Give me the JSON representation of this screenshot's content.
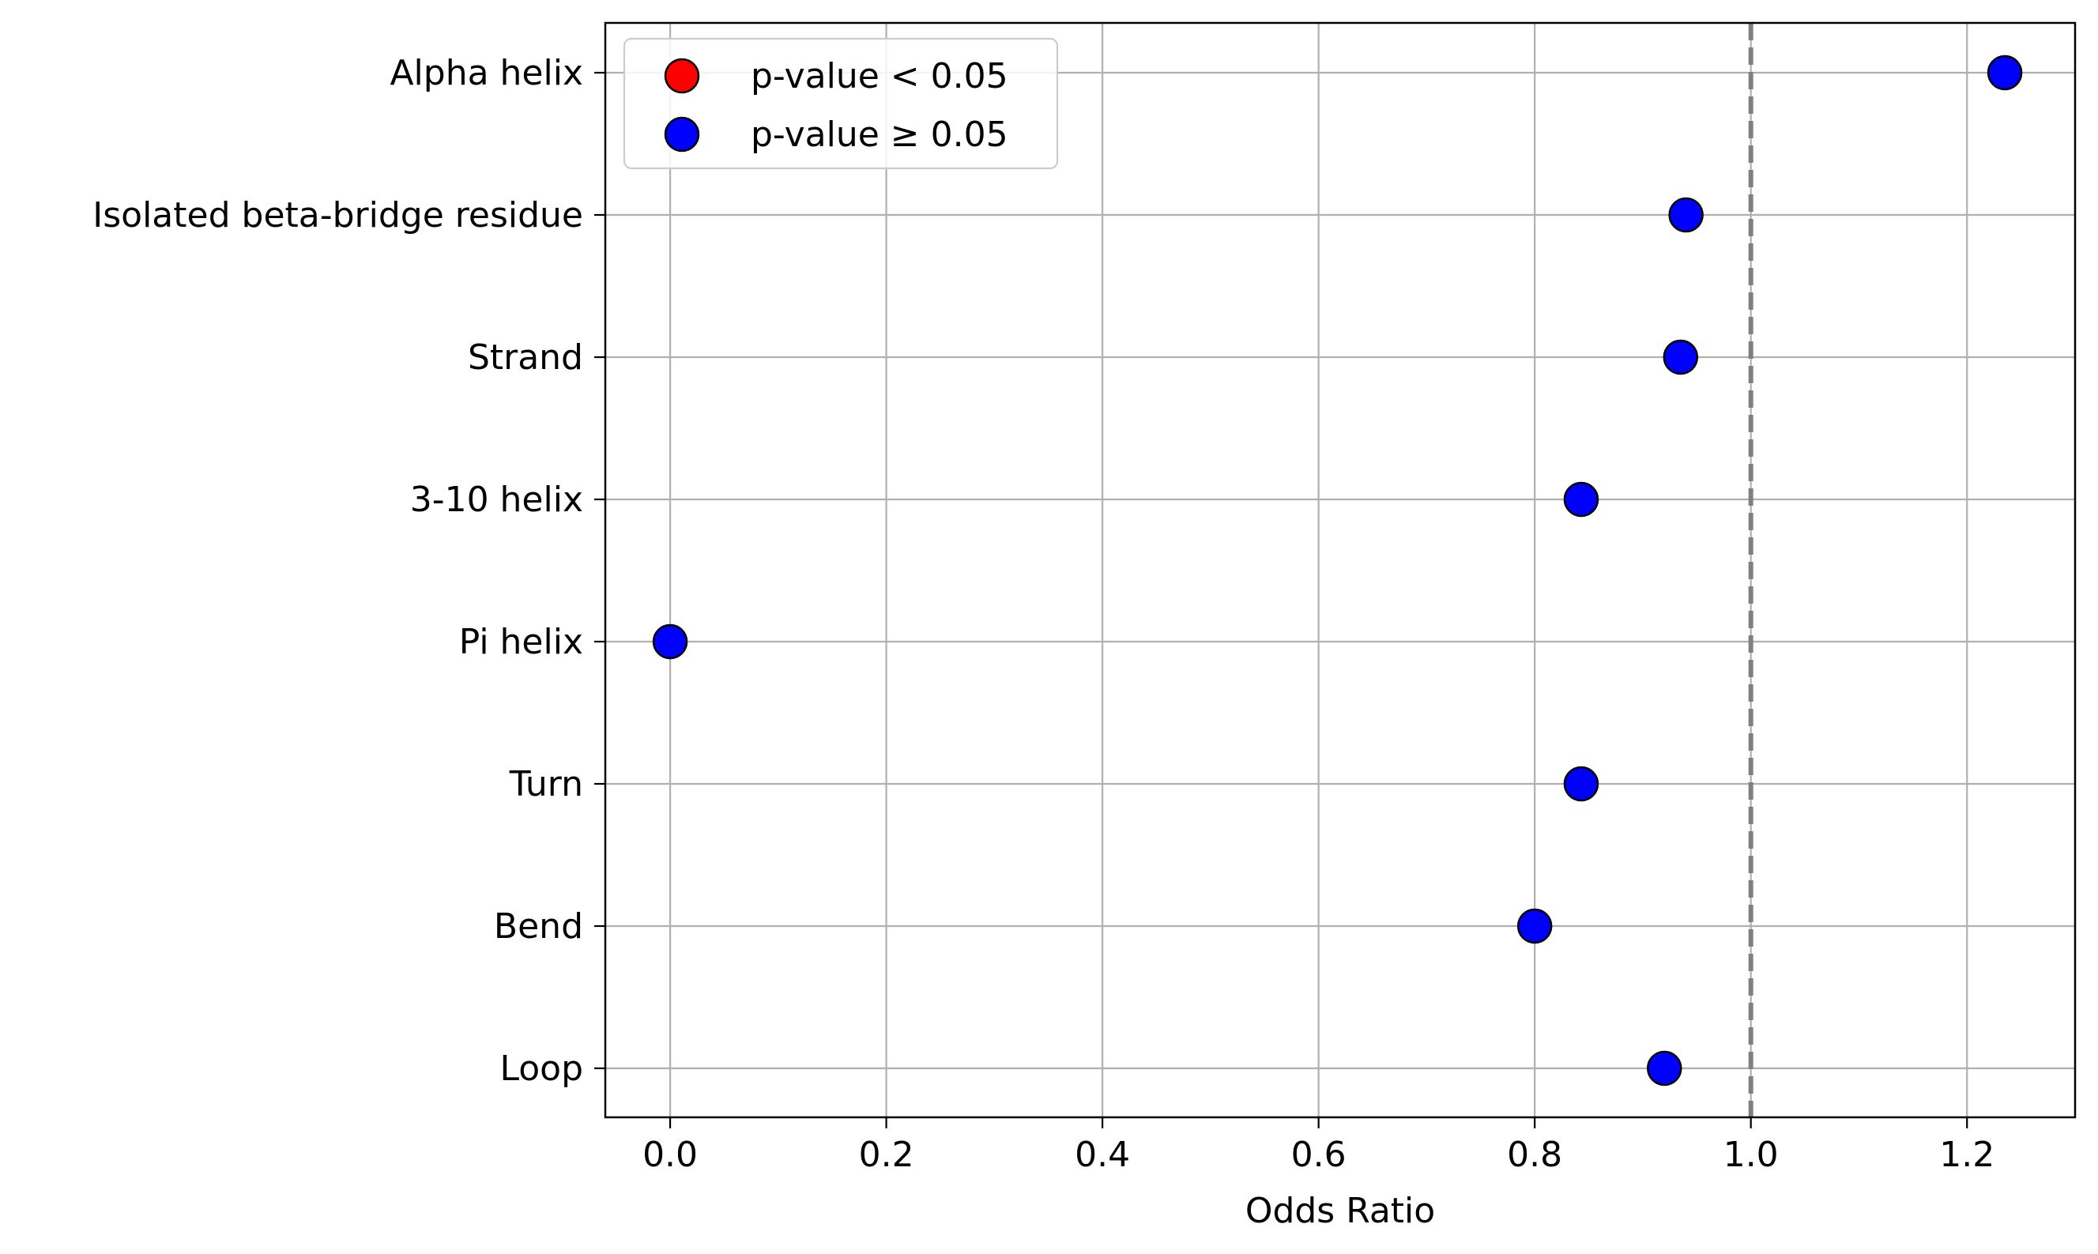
{
  "chart_data": {
    "type": "scatter",
    "orientation": "horizontal",
    "title": "",
    "xlabel": "Odds Ratio",
    "ylabel": "",
    "xlim": [
      -0.06,
      1.3
    ],
    "xticks": [
      0.0,
      0.2,
      0.4,
      0.6,
      0.8,
      1.0,
      1.2
    ],
    "xtick_labels": [
      "0.0",
      "0.2",
      "0.4",
      "0.6",
      "0.8",
      "1.0",
      "1.2"
    ],
    "categories": [
      "Alpha helix",
      "Isolated beta-bridge residue",
      "Strand",
      "3-10 helix",
      "Pi helix",
      "Turn",
      "Bend",
      "Loop"
    ],
    "values": [
      1.235,
      0.94,
      0.935,
      0.843,
      0.0,
      0.843,
      0.8,
      0.92
    ],
    "significant": [
      false,
      false,
      false,
      false,
      false,
      false,
      false,
      false
    ],
    "reference_line": {
      "x": 1.0,
      "style": "dashed",
      "color": "#808080"
    },
    "grid": true,
    "legend": {
      "position": "top-left",
      "entries": [
        {
          "label": "p-value < 0.05",
          "color": "#ff0000"
        },
        {
          "label": "p-value ≥ 0.05",
          "color": "#0000ff"
        }
      ]
    },
    "colors": {
      "significant": "#ff0000",
      "not_significant": "#0000ff",
      "grid": "#b0b0b0",
      "marker_edge": "#000000"
    }
  }
}
